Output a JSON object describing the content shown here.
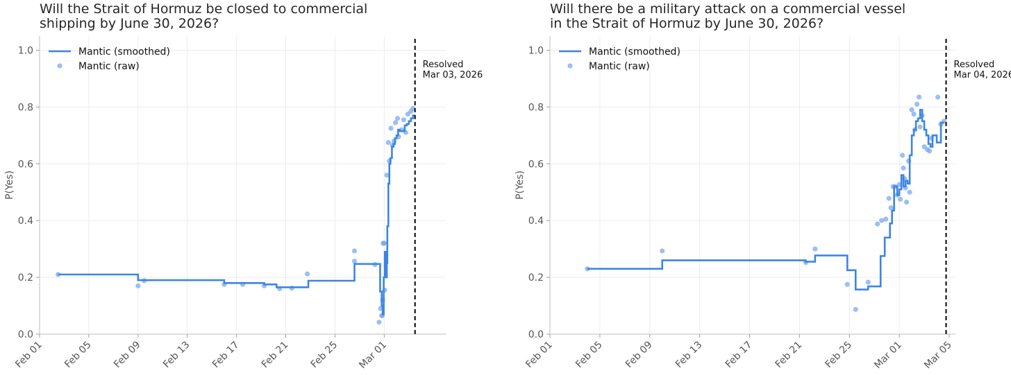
{
  "colors": {
    "smoothed": "#3d85e0",
    "raw": "#7aaaf0",
    "resolved_line": "#000000"
  },
  "chart_data": [
    {
      "type": "line",
      "title_lines": [
        "Will the Strait of Hormuz be closed to commercial",
        "shipping by June 30, 2026?"
      ],
      "ylabel": "P(Yes)",
      "ylim": [
        0,
        1.05
      ],
      "yticks": [
        0.0,
        0.2,
        0.4,
        0.6,
        0.8,
        1.0
      ],
      "ytick_labels": [
        "0.0",
        "0.2",
        "0.4",
        "0.6",
        "0.8",
        "1.0"
      ],
      "xlim": [
        "2026-02-01",
        "2026-03-06"
      ],
      "xticks": [
        "2026-02-01",
        "2026-02-05",
        "2026-02-09",
        "2026-02-13",
        "2026-02-17",
        "2026-02-21",
        "2026-02-25",
        "2026-03-01"
      ],
      "xtick_labels": [
        "Feb 01",
        "Feb 05",
        "Feb 09",
        "Feb 13",
        "Feb 17",
        "Feb 21",
        "Feb 25",
        "Mar 01"
      ],
      "grid": true,
      "legend": {
        "placement": "top-left",
        "entries": [
          "Mantic (smoothed)",
          "Mantic (raw)"
        ]
      },
      "resolved": {
        "date": "2026-03-03T12:00",
        "label_lines": [
          "Resolved",
          "Mar 03, 2026"
        ]
      },
      "series": [
        {
          "name": "Mantic (smoothed)",
          "style": "step",
          "points": [
            [
              "2026-02-02T12:00",
              0.21
            ],
            [
              "2026-02-09T00:00",
              0.19
            ],
            [
              "2026-02-16T00:00",
              0.18
            ],
            [
              "2026-02-19T06:00",
              0.175
            ],
            [
              "2026-02-20T06:00",
              0.165
            ],
            [
              "2026-02-21T00:00",
              0.165
            ],
            [
              "2026-02-22T00:00",
              0.165
            ],
            [
              "2026-02-22T20:00",
              0.188
            ],
            [
              "2026-02-26T12:00",
              0.188
            ],
            [
              "2026-02-26T14:00",
              0.247
            ],
            [
              "2026-02-28T12:00",
              0.247
            ],
            [
              "2026-02-28T16:00",
              0.15
            ],
            [
              "2026-02-28T19:00",
              0.1
            ],
            [
              "2026-02-28T21:00",
              0.07
            ],
            [
              "2026-02-28T23:00",
              0.2
            ],
            [
              "2026-03-01T01:00",
              0.29
            ],
            [
              "2026-03-01T03:00",
              0.2
            ],
            [
              "2026-03-01T05:00",
              0.25
            ],
            [
              "2026-03-01T06:00",
              0.38
            ],
            [
              "2026-03-01T08:00",
              0.53
            ],
            [
              "2026-03-01T10:00",
              0.6
            ],
            [
              "2026-03-01T12:00",
              0.62
            ],
            [
              "2026-03-01T15:00",
              0.66
            ],
            [
              "2026-03-01T18:00",
              0.67
            ],
            [
              "2026-03-01T21:00",
              0.69
            ],
            [
              "2026-03-02T00:00",
              0.7
            ],
            [
              "2026-03-02T03:00",
              0.72
            ],
            [
              "2026-03-02T06:00",
              0.715
            ],
            [
              "2026-03-02T12:00",
              0.715
            ],
            [
              "2026-03-02T16:00",
              0.735
            ],
            [
              "2026-03-02T20:00",
              0.74
            ],
            [
              "2026-03-03T00:00",
              0.75
            ],
            [
              "2026-03-03T04:00",
              0.76
            ],
            [
              "2026-03-03T08:00",
              0.77
            ],
            [
              "2026-03-03T12:00",
              0.77
            ]
          ]
        },
        {
          "name": "Mantic (raw)",
          "style": "scatter",
          "points": [
            [
              "2026-02-02T12:00",
              0.21
            ],
            [
              "2026-02-09T00:00",
              0.17
            ],
            [
              "2026-02-09T12:00",
              0.188
            ],
            [
              "2026-02-16T00:00",
              0.175
            ],
            [
              "2026-02-17T12:00",
              0.175
            ],
            [
              "2026-02-19T06:00",
              0.17
            ],
            [
              "2026-02-20T12:00",
              0.16
            ],
            [
              "2026-02-21T12:00",
              0.162
            ],
            [
              "2026-02-22T18:00",
              0.212
            ],
            [
              "2026-02-26T14:00",
              0.293
            ],
            [
              "2026-02-26T14:00",
              0.257
            ],
            [
              "2026-02-28T06:00",
              0.245
            ],
            [
              "2026-02-28T14:00",
              0.042
            ],
            [
              "2026-02-28T17:00",
              0.09
            ],
            [
              "2026-02-28T19:00",
              0.065
            ],
            [
              "2026-02-28T20:00",
              0.065
            ],
            [
              "2026-02-28T21:00",
              0.12
            ],
            [
              "2026-02-28T22:00",
              0.32
            ],
            [
              "2026-02-28T23:00",
              0.32
            ],
            [
              "2026-03-01T00:00",
              0.32
            ],
            [
              "2026-03-01T01:00",
              0.155
            ],
            [
              "2026-03-01T05:00",
              0.56
            ],
            [
              "2026-03-01T08:00",
              0.675
            ],
            [
              "2026-03-01T10:00",
              0.61
            ],
            [
              "2026-03-01T13:00",
              0.725
            ],
            [
              "2026-03-01T16:00",
              0.665
            ],
            [
              "2026-03-01T19:00",
              0.68
            ],
            [
              "2026-03-01T22:00",
              0.745
            ],
            [
              "2026-03-02T02:00",
              0.76
            ],
            [
              "2026-03-02T04:00",
              0.695
            ],
            [
              "2026-03-02T10:00",
              0.72
            ],
            [
              "2026-03-02T14:00",
              0.755
            ],
            [
              "2026-03-02T18:00",
              0.71
            ],
            [
              "2026-03-02T22:00",
              0.775
            ],
            [
              "2026-03-03T04:00",
              0.785
            ],
            [
              "2026-03-03T08:00",
              0.795
            ]
          ]
        }
      ]
    },
    {
      "type": "line",
      "title_lines": [
        "Will there be a military attack on a commercial vessel",
        "in the Strait of Hormuz by June 30, 2026?"
      ],
      "ylabel": "P(Yes)",
      "ylim": [
        0,
        1.05
      ],
      "yticks": [
        0.0,
        0.2,
        0.4,
        0.6,
        0.8,
        1.0
      ],
      "ytick_labels": [
        "0.0",
        "0.2",
        "0.4",
        "0.6",
        "0.8",
        "1.0"
      ],
      "xlim": [
        "2026-02-01",
        "2026-03-05T12:00"
      ],
      "xticks": [
        "2026-02-01",
        "2026-02-05",
        "2026-02-09",
        "2026-02-13",
        "2026-02-17",
        "2026-02-21",
        "2026-02-25",
        "2026-03-01",
        "2026-03-05"
      ],
      "xtick_labels": [
        "Feb 01",
        "Feb 05",
        "Feb 09",
        "Feb 13",
        "Feb 17",
        "Feb 21",
        "Feb 25",
        "Mar 01",
        "Mar 05"
      ],
      "grid": true,
      "legend": {
        "placement": "top-left",
        "entries": [
          "Mantic (smoothed)",
          "Mantic (raw)"
        ]
      },
      "resolved": {
        "date": "2026-03-04T18:00",
        "label_lines": [
          "Resolved",
          "Mar 04, 2026"
        ]
      },
      "series": [
        {
          "name": "Mantic (smoothed)",
          "style": "step",
          "points": [
            [
              "2026-02-04T00:00",
              0.23
            ],
            [
              "2026-02-10T00:00",
              0.26
            ],
            [
              "2026-02-21T00:00",
              0.26
            ],
            [
              "2026-02-21T12:00",
              0.255
            ],
            [
              "2026-02-22T06:00",
              0.277
            ],
            [
              "2026-02-24T20:00",
              0.225
            ],
            [
              "2026-02-25T12:00",
              0.157
            ],
            [
              "2026-02-26T12:00",
              0.168
            ],
            [
              "2026-02-27T12:00",
              0.275
            ],
            [
              "2026-02-27T20:00",
              0.34
            ],
            [
              "2026-02-28T06:00",
              0.39
            ],
            [
              "2026-02-28T10:00",
              0.435
            ],
            [
              "2026-02-28T14:00",
              0.52
            ],
            [
              "2026-02-28T20:00",
              0.49
            ],
            [
              "2026-03-01T00:00",
              0.51
            ],
            [
              "2026-03-01T04:00",
              0.56
            ],
            [
              "2026-03-01T08:00",
              0.52
            ],
            [
              "2026-03-01T12:00",
              0.54
            ],
            [
              "2026-03-01T16:00",
              0.53
            ],
            [
              "2026-03-01T20:00",
              0.63
            ],
            [
              "2026-03-02T00:00",
              0.7
            ],
            [
              "2026-03-02T04:00",
              0.72
            ],
            [
              "2026-03-02T08:00",
              0.75
            ],
            [
              "2026-03-02T12:00",
              0.76
            ],
            [
              "2026-03-02T16:00",
              0.79
            ],
            [
              "2026-03-02T20:00",
              0.75
            ],
            [
              "2026-03-03T00:00",
              0.72
            ],
            [
              "2026-03-03T04:00",
              0.7
            ],
            [
              "2026-03-03T08:00",
              0.67
            ],
            [
              "2026-03-03T12:00",
              0.66
            ],
            [
              "2026-03-03T16:00",
              0.7
            ],
            [
              "2026-03-04T00:00",
              0.675
            ],
            [
              "2026-03-04T08:00",
              0.745
            ],
            [
              "2026-03-04T14:00",
              0.745
            ]
          ]
        },
        {
          "name": "Mantic (raw)",
          "style": "scatter",
          "points": [
            [
              "2026-02-04T00:00",
              0.23
            ],
            [
              "2026-02-10T00:00",
              0.293
            ],
            [
              "2026-02-21T12:00",
              0.252
            ],
            [
              "2026-02-22T06:00",
              0.3
            ],
            [
              "2026-02-24T20:00",
              0.175
            ],
            [
              "2026-02-25T12:00",
              0.087
            ],
            [
              "2026-02-26T12:00",
              0.183
            ],
            [
              "2026-02-27T06:00",
              0.388
            ],
            [
              "2026-02-27T14:00",
              0.4
            ],
            [
              "2026-02-27T22:00",
              0.405
            ],
            [
              "2026-02-28T04:00",
              0.478
            ],
            [
              "2026-02-28T08:00",
              0.445
            ],
            [
              "2026-02-28T12:00",
              0.52
            ],
            [
              "2026-02-28T16:00",
              0.52
            ],
            [
              "2026-02-28T20:00",
              0.49
            ],
            [
              "2026-03-01T00:00",
              0.527
            ],
            [
              "2026-03-01T02:00",
              0.475
            ],
            [
              "2026-03-01T06:00",
              0.63
            ],
            [
              "2026-03-01T08:00",
              0.585
            ],
            [
              "2026-03-01T10:00",
              0.548
            ],
            [
              "2026-03-01T12:00",
              0.515
            ],
            [
              "2026-03-01T14:00",
              0.465
            ],
            [
              "2026-03-01T18:00",
              0.61
            ],
            [
              "2026-03-01T20:00",
              0.5
            ],
            [
              "2026-03-02T00:00",
              0.79
            ],
            [
              "2026-03-02T04:00",
              0.775
            ],
            [
              "2026-03-02T06:00",
              0.72
            ],
            [
              "2026-03-02T10:00",
              0.81
            ],
            [
              "2026-03-02T14:00",
              0.835
            ],
            [
              "2026-03-02T16:00",
              0.73
            ],
            [
              "2026-03-02T20:00",
              0.77
            ],
            [
              "2026-03-03T00:00",
              0.66
            ],
            [
              "2026-03-03T06:00",
              0.65
            ],
            [
              "2026-03-03T10:00",
              0.645
            ],
            [
              "2026-03-03T14:00",
              0.69
            ],
            [
              "2026-03-04T02:00",
              0.835
            ],
            [
              "2026-03-04T08:00",
              0.74
            ],
            [
              "2026-03-04T14:00",
              0.75
            ]
          ]
        }
      ]
    }
  ]
}
